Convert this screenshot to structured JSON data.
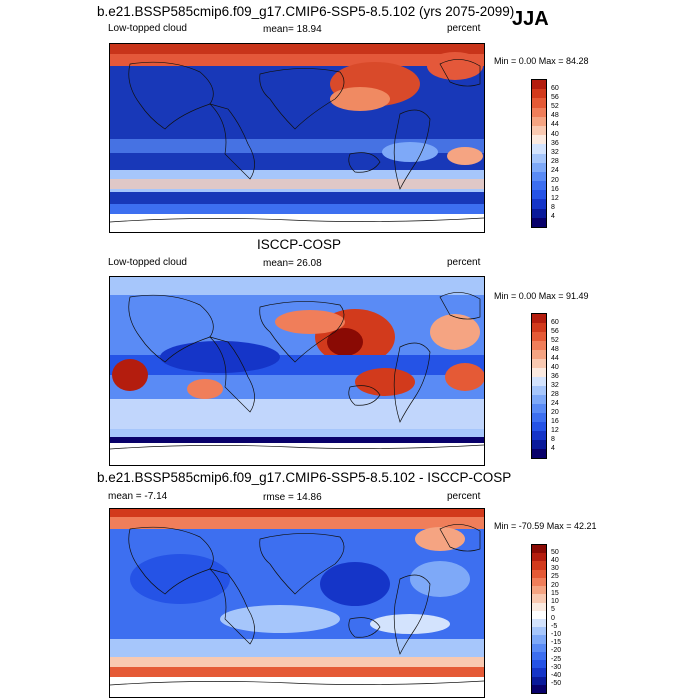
{
  "season": "JJA",
  "panels": [
    {
      "title": "b.e21.BSSP585cmip6.f09_g17.CMIP6-SSP5-8.5.102 (yrs 2075-2099)",
      "left_label": "Low-topped cloud",
      "center_label": "mean=  18.94",
      "right_label": "percent",
      "minmax": "Min =   0.00 Max =  84.28",
      "colorbar": {
        "labels": [
          "60",
          "56",
          "52",
          "48",
          "44",
          "40",
          "36",
          "32",
          "28",
          "24",
          "20",
          "16",
          "12",
          "8",
          "4"
        ]
      }
    },
    {
      "title": "ISCCP-COSP",
      "left_label": "Low-topped cloud",
      "center_label": "mean=  26.08",
      "right_label": "percent",
      "minmax": "Min =   0.00 Max =  91.49",
      "colorbar": {
        "labels": [
          "60",
          "56",
          "52",
          "48",
          "44",
          "40",
          "36",
          "32",
          "28",
          "24",
          "20",
          "16",
          "12",
          "8",
          "4"
        ]
      }
    },
    {
      "title": "b.e21.BSSP585cmip6.f09_g17.CMIP6-SSP5-8.5.102 - ISCCP-COSP",
      "left_label": "mean =  -7.14",
      "center_label": "rmse =  14.86",
      "right_label": "percent",
      "minmax": "Min = -70.59 Max =  42.21",
      "colorbar": {
        "labels": [
          "50",
          "40",
          "30",
          "25",
          "20",
          "15",
          "10",
          "5",
          "0",
          "-5",
          "-10",
          "-15",
          "-20",
          "-25",
          "-30",
          "-40",
          "-50"
        ]
      }
    }
  ],
  "colors": {
    "abs_scale": [
      "#08006a",
      "#0a1a9a",
      "#1535c8",
      "#2553e6",
      "#3d6ff0",
      "#5a8bf5",
      "#7ea9f8",
      "#a6c6fb",
      "#d3e3fd",
      "#fbeae0",
      "#f9c9b1",
      "#f5a482",
      "#f07e5a",
      "#e55a36",
      "#d23a1c",
      "#b41d0e",
      "#8a0a04"
    ],
    "diff_scale": [
      "#08006a",
      "#0a1a9a",
      "#1535c8",
      "#2553e6",
      "#3d6ff0",
      "#5a8bf5",
      "#7ea9f8",
      "#a6c6fb",
      "#d3e3fd",
      "#ffffff",
      "#fbeae0",
      "#f9c9b1",
      "#f5a482",
      "#f07e5a",
      "#e55a36",
      "#d23a1c",
      "#b41d0e",
      "#8a0a04"
    ]
  }
}
